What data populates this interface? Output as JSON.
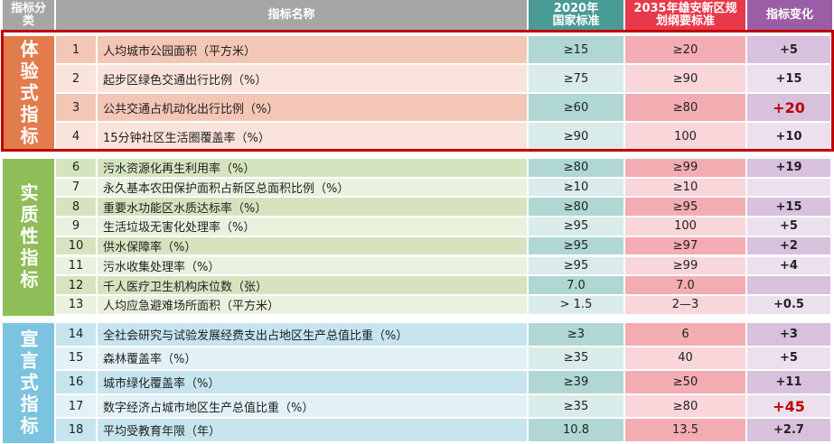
{
  "header": {
    "category": "指标分类",
    "name": "指标名称",
    "std2020": "2020年国家标准",
    "std2035": "2035年雄安新区规划纲要标准",
    "change": "指标变化"
  },
  "colors": {
    "header_gray": "#a6a6a6",
    "header_teal": "#4a9b95",
    "header_red": "#e8394a",
    "header_purple": "#9b5ea6",
    "highlight_red": "#c00000"
  },
  "groups": [
    {
      "label": "体验式指标",
      "color": "#e27c4c",
      "row_dark": "#f3c6b5",
      "row_light": "#f9e3da",
      "rows": [
        {
          "no": "1",
          "name": "人均城市公园面积（平方米）",
          "std2020": "≥15",
          "std2035": "≥20",
          "change": "+5"
        },
        {
          "no": "2",
          "name": "起步区绿色交通出行比例（%）",
          "std2020": "≥75",
          "std2035": "≥90",
          "change": "+15"
        },
        {
          "no": "3",
          "name": "公共交通占机动化出行比例（%）",
          "std2020": "≥60",
          "std2035": "≥80",
          "change": "+20",
          "highlight": true
        },
        {
          "no": "4",
          "name": "15分钟社区生活圈覆盖率（%）",
          "std2020": "≥90",
          "std2035": "100",
          "change": "+10"
        }
      ]
    },
    {
      "label": "实质性指标",
      "color": "#8fbd58",
      "row_dark": "#d5e4bf",
      "row_light": "#eaf2df",
      "rows": [
        {
          "no": "6",
          "name": "污水资源化再生利用率（%）",
          "std2020": "≥80",
          "std2035": "≥99",
          "change": "+19"
        },
        {
          "no": "7",
          "name": "永久基本农田保护面积占新区总面积比例（%）",
          "std2020": "≥10",
          "std2035": "≥10",
          "change": ""
        },
        {
          "no": "8",
          "name": "重要水功能区水质达标率（%）",
          "std2020": "≥80",
          "std2035": "≥95",
          "change": "+15"
        },
        {
          "no": "9",
          "name": "生活垃圾无害化处理率（%）",
          "std2020": "≥95",
          "std2035": "100",
          "change": "+5"
        },
        {
          "no": "10",
          "name": "供水保障率（%）",
          "std2020": "≥95",
          "std2035": "≥97",
          "change": "+2"
        },
        {
          "no": "11",
          "name": "污水收集处理率（%）",
          "std2020": "≥95",
          "std2035": "≥99",
          "change": "+4"
        },
        {
          "no": "12",
          "name": "千人医疗卫生机构床位数（张）",
          "std2020": "7.0",
          "std2035": "7.0",
          "change": ""
        },
        {
          "no": "13",
          "name": "人均应急避难场所面积（平方米）",
          "std2020": "> 1.5",
          "std2035": "2—3",
          "change": "+0.5"
        }
      ]
    },
    {
      "label": "宣言式指标",
      "color": "#7cc3df",
      "row_dark": "#c6e5ef",
      "row_light": "#e3f2f7",
      "rows": [
        {
          "no": "14",
          "name": "全社会研究与试验发展经费支出占地区生产总值比重（%）",
          "std2020": "≥3",
          "std2035": "6",
          "change": "+3"
        },
        {
          "no": "15",
          "name": "森林覆盖率（%）",
          "std2020": "≥35",
          "std2035": "40",
          "change": "+5"
        },
        {
          "no": "16",
          "name": "城市绿化覆盖率（%）",
          "std2020": "≥39",
          "std2035": "≥50",
          "change": "+11"
        },
        {
          "no": "17",
          "name": "数字经济占城市地区生产总值比重（%）",
          "std2020": "≥35",
          "std2035": "≥80",
          "change": "+45",
          "highlight": true
        },
        {
          "no": "18",
          "name": "平均受教育年限（年）",
          "std2020": "10.8",
          "std2035": "13.5",
          "change": "+2.7"
        }
      ]
    }
  ]
}
